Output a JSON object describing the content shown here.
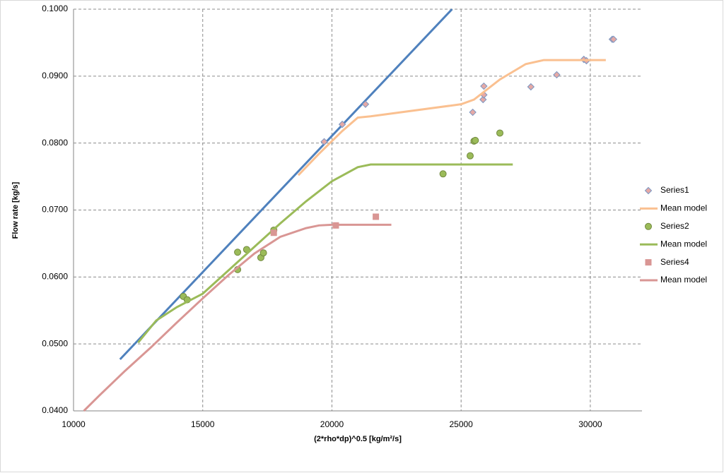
{
  "chart_data": {
    "type": "scatter",
    "x_label": "(2*rho*dp)^0.5 [kg/m²/s]",
    "y_label": "Flow rate [kg/s]",
    "xlim": [
      10000,
      32000
    ],
    "xticks": [
      10000,
      15000,
      20000,
      25000,
      30000
    ],
    "ylim": [
      0.04,
      0.1
    ],
    "yticks": [
      {
        "value": 0.04,
        "label": "0.0400"
      },
      {
        "value": 0.05,
        "label": "0.0500"
      },
      {
        "value": 0.06,
        "label": "0.0600"
      },
      {
        "value": 0.07,
        "label": "0.0700"
      },
      {
        "value": 0.08,
        "label": "0.0800"
      },
      {
        "value": 0.09,
        "label": "0.0900"
      },
      {
        "value": 0.1,
        "label": "0.1000"
      }
    ],
    "grid": true,
    "legend": "right",
    "series": [
      {
        "mode": "line",
        "color": "#4f81bd",
        "x": [
          11800,
          24650
        ],
        "values": [
          0.0477,
          0.1
        ]
      },
      {
        "name": "Series1",
        "mode": "markers",
        "marker": "diamond",
        "color": "#e6a9a5",
        "x": [
          19700,
          20400,
          21300,
          25450,
          25850,
          25880,
          25880,
          27700,
          28700,
          29750,
          29850,
          30850,
          30900
        ],
        "values": [
          0.0802,
          0.0828,
          0.0858,
          0.0846,
          0.0865,
          0.0872,
          0.0885,
          0.0884,
          0.0902,
          0.0925,
          0.0923,
          0.0955,
          0.0955
        ]
      },
      {
        "name": "Mean model",
        "mode": "line",
        "color": "#fac090",
        "x": [
          18700,
          19500,
          20400,
          21000,
          21500,
          25000,
          25500,
          26500,
          27500,
          28200,
          30600
        ],
        "values": [
          0.0752,
          0.0784,
          0.0818,
          0.0838,
          0.084,
          0.0858,
          0.0865,
          0.0895,
          0.0918,
          0.0924,
          0.0924
        ]
      },
      {
        "name": "Series2",
        "mode": "markers",
        "marker": "circle",
        "color": "#9bbb59",
        "x": [
          14250,
          14400,
          16350,
          16350,
          16700,
          17250,
          17350,
          17750,
          24300,
          25350,
          25500,
          25550,
          26500
        ],
        "values": [
          0.0571,
          0.0566,
          0.0637,
          0.0611,
          0.0641,
          0.0629,
          0.0636,
          0.067,
          0.0754,
          0.0781,
          0.0803,
          0.0804,
          0.0815
        ]
      },
      {
        "name": "Mean model",
        "mode": "line",
        "color": "#9bbb59",
        "x": [
          12500,
          13200,
          14000,
          15000,
          16000,
          17000,
          18000,
          19000,
          20000,
          21000,
          21500,
          22000,
          27000
        ],
        "values": [
          0.0502,
          0.0535,
          0.0555,
          0.0575,
          0.061,
          0.0645,
          0.068,
          0.0713,
          0.0743,
          0.0764,
          0.0768,
          0.0768,
          0.0768
        ]
      },
      {
        "name": "Series4",
        "mode": "markers",
        "marker": "square",
        "color": "#d99694",
        "x": [
          17750,
          20150,
          21700
        ],
        "values": [
          0.0666,
          0.0677,
          0.069
        ]
      },
      {
        "name": "Mean model",
        "mode": "line",
        "color": "#d99694",
        "x": [
          10400,
          11000,
          12000,
          13000,
          14000,
          15000,
          16000,
          17000,
          18000,
          19000,
          19500,
          20000,
          22300
        ],
        "values": [
          0.04,
          0.0423,
          0.046,
          0.0495,
          0.0532,
          0.0568,
          0.0603,
          0.0635,
          0.066,
          0.0673,
          0.0677,
          0.0678,
          0.0678
        ]
      }
    ]
  }
}
